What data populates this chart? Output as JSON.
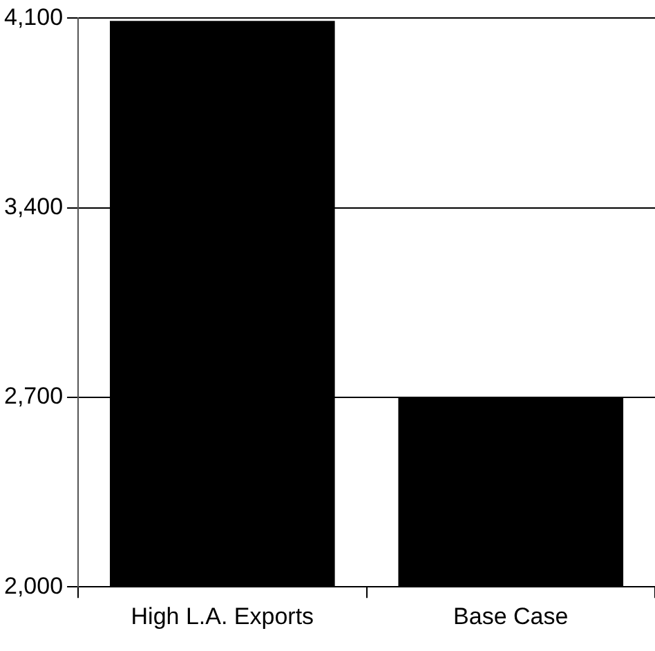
{
  "chart_data": {
    "type": "bar",
    "categories": [
      "High L.A. Exports",
      "Base Case"
    ],
    "values": [
      4090,
      2700
    ],
    "color": "#000000",
    "ylim": [
      2000,
      4100
    ],
    "yticks": [
      {
        "value": 2000,
        "label": "2,000"
      },
      {
        "value": 2700,
        "label": "2,700"
      },
      {
        "value": 3400,
        "label": "3,400"
      },
      {
        "value": 4100,
        "label": "4,100"
      }
    ],
    "grid": "y",
    "legend": false
  }
}
